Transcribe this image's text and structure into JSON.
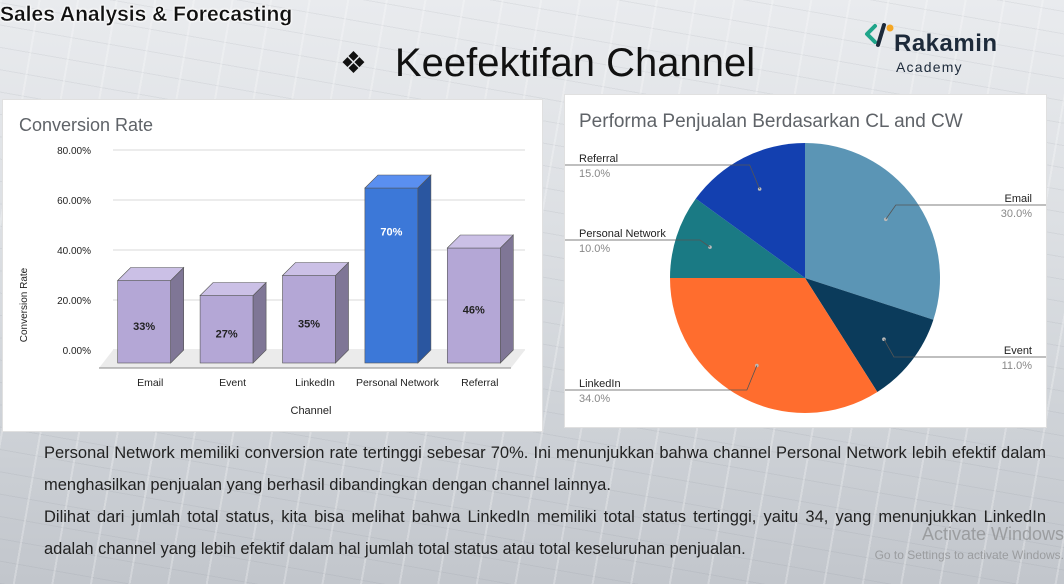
{
  "header": {
    "top_title": "Sales Analysis & Forecasting",
    "bullet": "❖",
    "heading": "Keefektifan Channel"
  },
  "logo": {
    "name": "Rakamin",
    "sub": "Academy",
    "icon": "rakamin-logo-icon"
  },
  "colors": {
    "bar": "#b4a7d6",
    "bar_highlight": "#3c78d8",
    "pie_email": "#5b95b5",
    "pie_event": "#0b3b5b",
    "pie_linkedin": "#ff6d2e",
    "pie_personal": "#1a7a84",
    "pie_referral": "#1340b0"
  },
  "chart_data": [
    {
      "type": "bar",
      "title": "Conversion Rate",
      "xlabel": "Channel",
      "ylabel": "Conversion Rate",
      "categories": [
        "Email",
        "Event",
        "LinkedIn",
        "Personal Network",
        "Referral"
      ],
      "values": [
        33,
        27,
        35,
        70,
        46
      ],
      "data_labels": [
        "33%",
        "27%",
        "35%",
        "70%",
        "46%"
      ],
      "yticks": [
        "0.00%",
        "20.00%",
        "40.00%",
        "60.00%",
        "80.00%"
      ],
      "ylim": [
        0,
        80
      ],
      "grid": true,
      "highlight": "Personal Network"
    },
    {
      "type": "pie",
      "title": "Performa Penjualan Berdasarkan CL and CW",
      "slices": [
        {
          "label": "Email",
          "value": 30.0,
          "pct": "30.0%",
          "color": "#5b95b5"
        },
        {
          "label": "Event",
          "value": 11.0,
          "pct": "11.0%",
          "color": "#0b3b5b"
        },
        {
          "label": "LinkedIn",
          "value": 34.0,
          "pct": "34.0%",
          "color": "#ff6d2e"
        },
        {
          "label": "Personal Network",
          "value": 10.0,
          "pct": "10.0%",
          "color": "#1a7a84"
        },
        {
          "label": "Referral",
          "value": 15.0,
          "pct": "15.0%",
          "color": "#1340b0"
        }
      ]
    }
  ],
  "body": {
    "p1": "Personal Network memiliki conversion rate tertinggi sebesar 70%. Ini menunjukkan bahwa channel Personal Network lebih efektif dalam menghasilkan penjualan yang berhasil dibandingkan dengan channel lainnya.",
    "p2": "Dilihat dari jumlah total status, kita bisa melihat bahwa LinkedIn memiliki total status tertinggi, yaitu 34, yang menunjukkan LinkedIn adalah channel yang lebih efektif dalam hal jumlah total status atau total keseluruhan penjualan."
  },
  "watermark": {
    "line1": "Activate Windows",
    "line2": "Go to Settings to activate Windows."
  }
}
